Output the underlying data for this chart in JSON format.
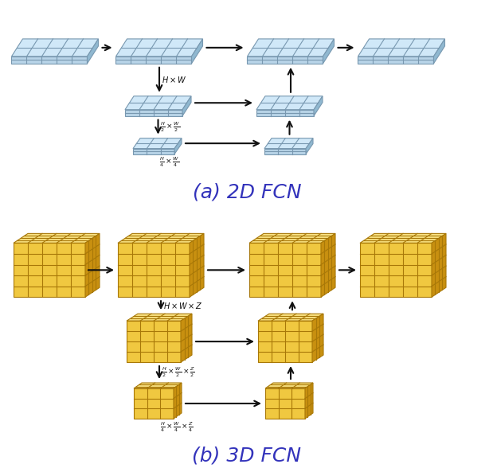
{
  "bg_color": "#ffffff",
  "blue_face": "#b8d4e8",
  "blue_top": "#d0e8f8",
  "blue_side": "#90b8d0",
  "blue_grid": "#7898b0",
  "yellow_face": "#f0c840",
  "yellow_top": "#f8e080",
  "yellow_side": "#c89010",
  "yellow_grid": "#a87808",
  "label_2d": "(a) 2D FCN",
  "label_3d": "(b) 3D FCN",
  "label_color": "#3333bb",
  "label_fontsize": 18,
  "text_color": "#111111",
  "text_fontsize": 7.0
}
